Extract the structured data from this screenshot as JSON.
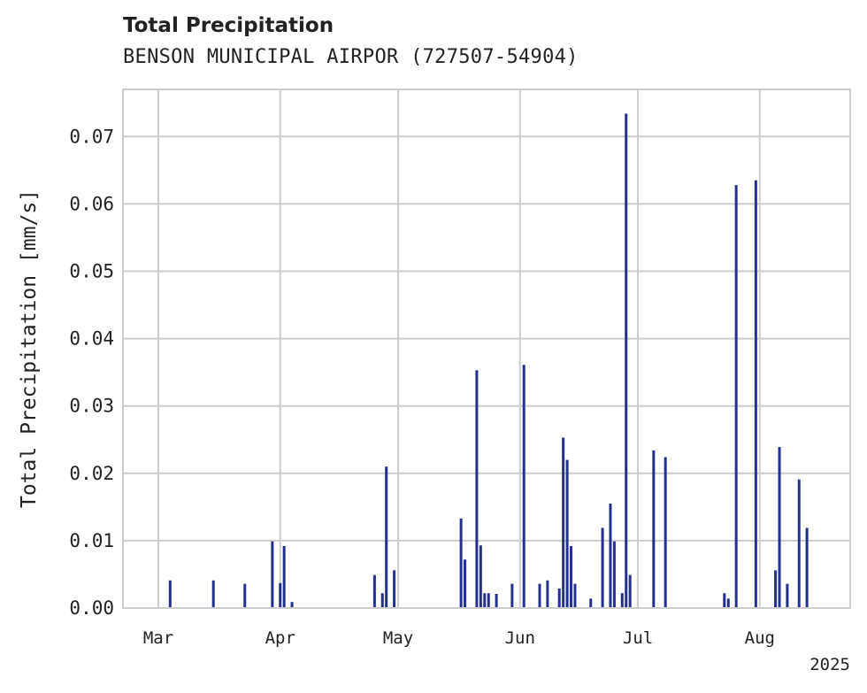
{
  "chart_data": {
    "type": "bar",
    "title": "Total Precipitation",
    "subtitle": "BENSON MUNICIPAL AIRPOR (727507-54904)",
    "xlabel": "",
    "ylabel": "Total Precipitation [mm/s]",
    "ylim": [
      0,
      0.077
    ],
    "xlim": [
      "2025-02-20",
      "2025-08-24"
    ],
    "grid": true,
    "x_ticks": [
      {
        "date": "2025-03-01",
        "label": "Mar"
      },
      {
        "date": "2025-04-01",
        "label": "Apr"
      },
      {
        "date": "2025-05-01",
        "label": "May"
      },
      {
        "date": "2025-06-01",
        "label": "Jun"
      },
      {
        "date": "2025-07-01",
        "label": "Jul"
      },
      {
        "date": "2025-08-01",
        "label": "Aug"
      }
    ],
    "x_offset_label": "2025",
    "y_ticks": [
      "0.00",
      "0.01",
      "0.02",
      "0.03",
      "0.04",
      "0.05",
      "0.06",
      "0.07"
    ],
    "bar_color": "#24308f",
    "series": [
      {
        "x": [
          "2025-03-04",
          "2025-03-15",
          "2025-03-23",
          "2025-03-30",
          "2025-04-01",
          "2025-04-02",
          "2025-04-04",
          "2025-05-26",
          "2025-04-25",
          "2025-04-27",
          "2025-04-28",
          "2025-04-30",
          "2025-05-17",
          "2025-05-18",
          "2025-05-21",
          "2025-05-22",
          "2025-05-23",
          "2025-05-24",
          "2025-05-30",
          "2025-06-02",
          "2025-06-06",
          "2025-06-08",
          "2025-06-11",
          "2025-06-12",
          "2025-06-13",
          "2025-06-14",
          "2025-06-15",
          "2025-06-19",
          "2025-06-22",
          "2025-06-24",
          "2025-06-25",
          "2025-06-27",
          "2025-06-28",
          "2025-06-29",
          "2025-07-05",
          "2025-07-08",
          "2025-07-23",
          "2025-07-24",
          "2025-07-26",
          "2025-07-31",
          "2025-08-05",
          "2025-08-06",
          "2025-08-08",
          "2025-08-11",
          "2025-08-13"
        ],
        "values": [
          0.0041,
          0.0041,
          0.0036,
          0.0099,
          0.0037,
          0.0092,
          0.0009,
          0.0021,
          0.0049,
          0.0022,
          0.021,
          0.0056,
          0.0133,
          0.0072,
          0.0353,
          0.0093,
          0.0022,
          0.0022,
          0.0036,
          0.0361,
          0.0036,
          0.0041,
          0.0029,
          0.0253,
          0.022,
          0.0092,
          0.0036,
          0.0014,
          0.0119,
          0.0155,
          0.0099,
          0.0022,
          0.0734,
          0.0049,
          0.0234,
          0.0224,
          0.0022,
          0.0014,
          0.0628,
          0.0635,
          0.0056,
          0.0239,
          0.0036,
          0.0191,
          0.0119
        ]
      }
    ]
  }
}
